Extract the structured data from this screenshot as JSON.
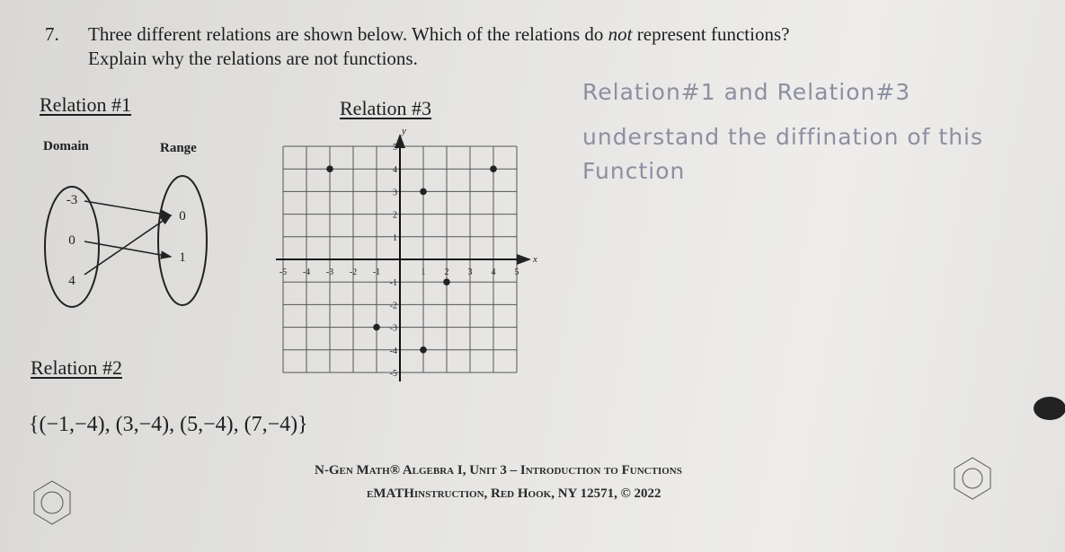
{
  "question": {
    "number": "7.",
    "text_before": "Three different relations are shown below. Which of the relations do ",
    "emphasis": "not",
    "text_after": " represent functions?",
    "line2": "Explain why the relations are not functions."
  },
  "relation1": {
    "title": "Relation #1",
    "domain_label": "Domain",
    "range_label": "Range",
    "domain": [
      -3,
      0,
      4
    ],
    "range": [
      0,
      1
    ],
    "pairs": [
      [
        -3,
        0
      ],
      [
        0,
        1
      ],
      [
        4,
        0
      ]
    ]
  },
  "relation2": {
    "title": "Relation #2",
    "set": "{(−1,−4), (3,−4), (5,−4), (7,−4)}"
  },
  "relation3": {
    "title": "Relation #3",
    "x_label": "x",
    "y_label": "y",
    "xlim": [
      -5,
      5
    ],
    "ylim": [
      -5,
      5
    ],
    "xticks": [
      -5,
      -4,
      -3,
      -2,
      -1,
      1,
      2,
      3,
      4,
      5
    ],
    "yticks": [
      -5,
      -4,
      -3,
      -2,
      -1,
      1,
      2,
      3,
      4,
      5
    ],
    "points": [
      {
        "x": -3,
        "y": 4
      },
      {
        "x": 4,
        "y": 4
      },
      {
        "x": 1,
        "y": 3
      },
      {
        "x": 2,
        "y": -1
      },
      {
        "x": -1,
        "y": -3
      },
      {
        "x": 1,
        "y": -4
      }
    ]
  },
  "handwriting": {
    "lines": [
      "Relation#1 and Relation#3",
      "understand the diffination of this",
      "Function"
    ]
  },
  "footer": {
    "line1": "N-Gen Math® Algebra I, Unit 3 – Introduction to Functions",
    "line2": "eMATHinstruction, Red Hook, NY 12571, © 2022"
  }
}
